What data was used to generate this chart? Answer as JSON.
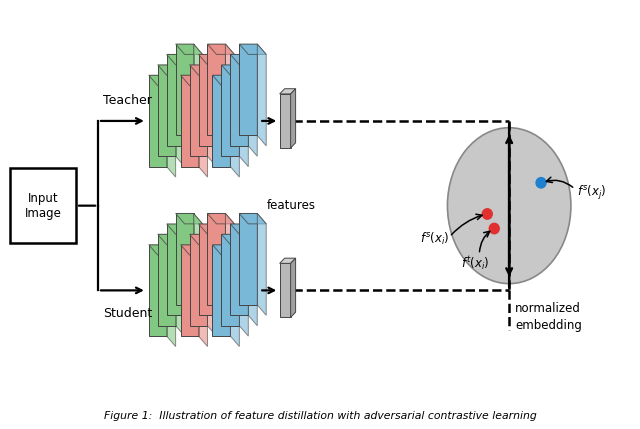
{
  "bg_color": "#ffffff",
  "layer_colors_green": "#82c882",
  "layer_colors_pink": "#e8908a",
  "layer_colors_blue": "#7ab8d8",
  "layer_edge": "#444444",
  "feature_bar_color": "#b8b8b8",
  "feature_bar_top": "#d0d0d0",
  "feature_bar_right": "#a0a0a0",
  "circle_face": "#c8c8c8",
  "circle_edge": "#888888",
  "dot_red": "#e03030",
  "dot_blue": "#2080d0",
  "input_box_label": "Input\nImage",
  "teacher_label": "Teacher",
  "student_label": "Student",
  "features_label": "features",
  "norm_label": "normalized\nembedding",
  "caption": "Figure 1:  Illustration of feature distillation with adversarial contrastive learning"
}
